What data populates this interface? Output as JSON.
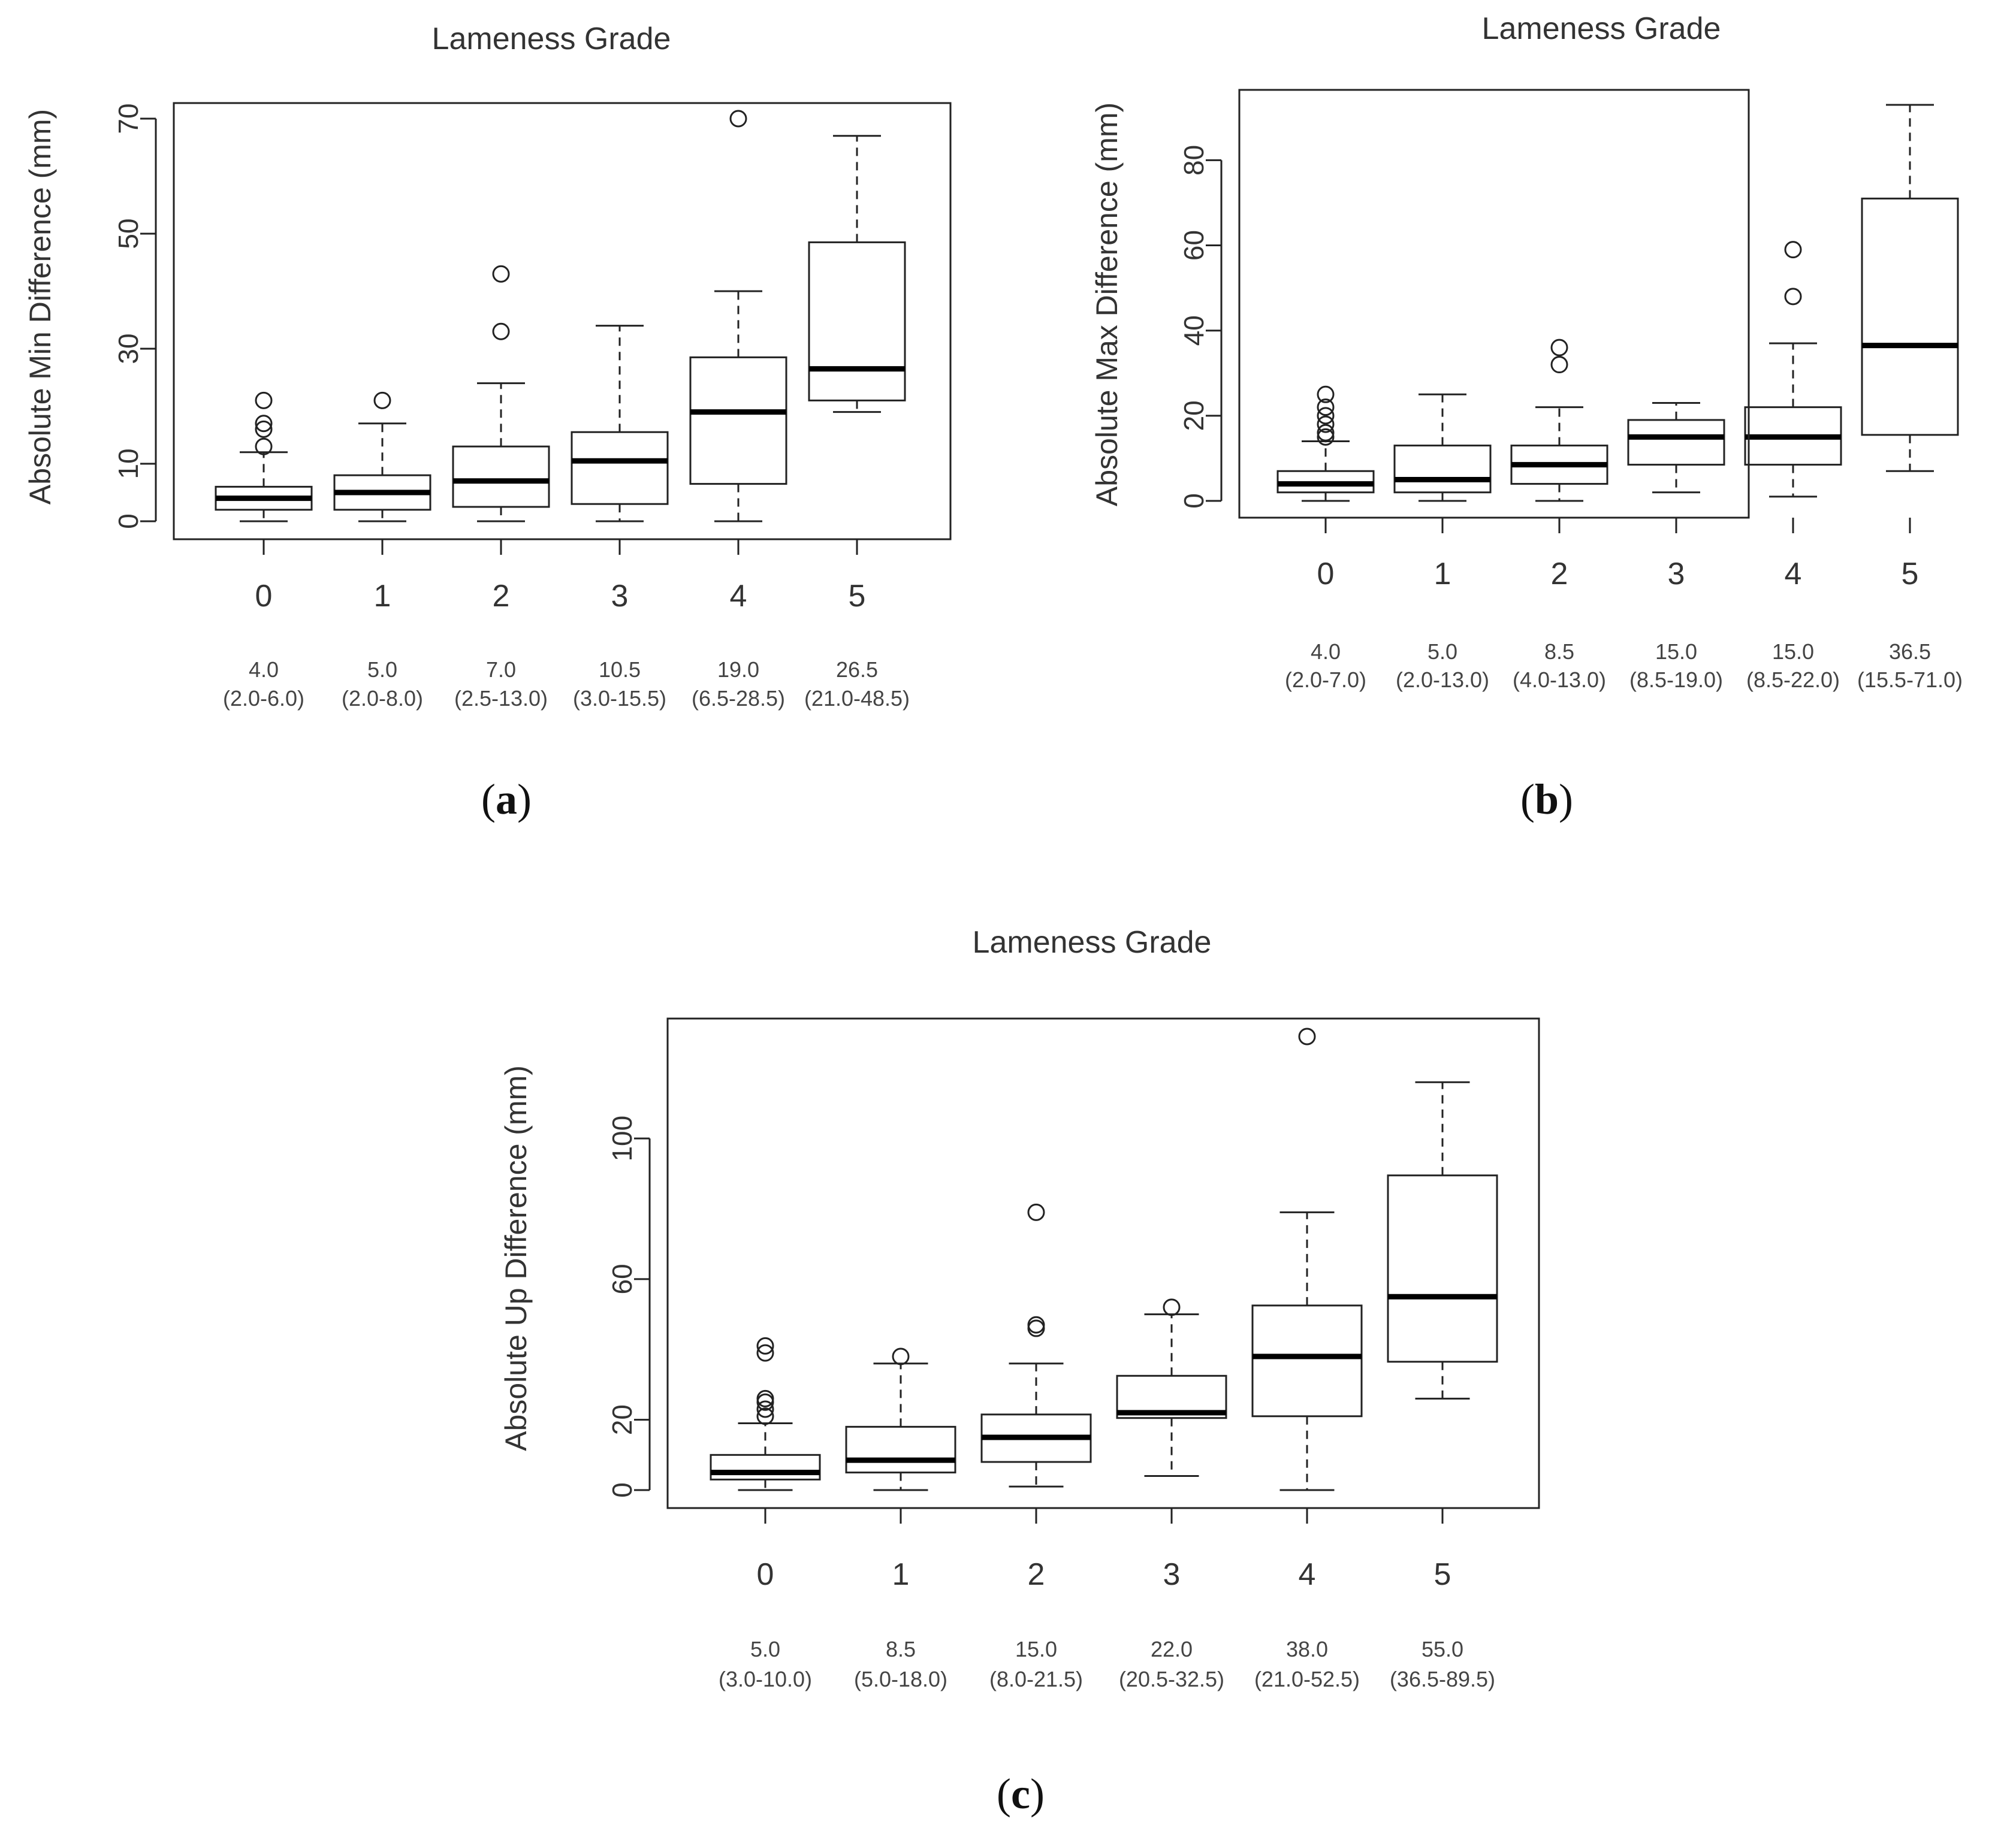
{
  "chart_data": [
    {
      "type": "boxplot",
      "panel_label": {
        "open": "(",
        "letter": "a",
        "close": ")"
      },
      "title": "Lameness Grade",
      "ylabel": "Absolute Min Difference (mm)",
      "ylim": [
        0,
        70
      ],
      "yticks": [
        0,
        10,
        30,
        50,
        70
      ],
      "categories": [
        "0",
        "1",
        "2",
        "3",
        "4",
        "5"
      ],
      "stats": [
        {
          "median": "4.0",
          "iqr": "(2.0-6.0)"
        },
        {
          "median": "5.0",
          "iqr": "(2.0-8.0)"
        },
        {
          "median": "7.0",
          "iqr": "(2.5-13.0)"
        },
        {
          "median": "10.5",
          "iqr": "(3.0-15.5)"
        },
        {
          "median": "19.0",
          "iqr": "(6.5-28.5)"
        },
        {
          "median": "26.5",
          "iqr": "(21.0-48.5)"
        }
      ],
      "boxes": [
        {
          "min": 0,
          "q1": 2.0,
          "median": 4.0,
          "q3": 6.0,
          "max": 12,
          "outliers": [
            13,
            16,
            17,
            21
          ]
        },
        {
          "min": 0,
          "q1": 2.0,
          "median": 5.0,
          "q3": 8.0,
          "max": 17,
          "outliers": [
            21
          ]
        },
        {
          "min": 0,
          "q1": 2.5,
          "median": 7.0,
          "q3": 13.0,
          "max": 24,
          "outliers": [
            33,
            43
          ]
        },
        {
          "min": 0,
          "q1": 3.0,
          "median": 10.5,
          "q3": 15.5,
          "max": 34,
          "outliers": []
        },
        {
          "min": 0,
          "q1": 6.5,
          "median": 19.0,
          "q3": 28.5,
          "max": 40,
          "outliers": [
            70
          ]
        },
        {
          "min": 19,
          "q1": 21.0,
          "median": 26.5,
          "q3": 48.5,
          "max": 67,
          "outliers": []
        }
      ]
    },
    {
      "type": "boxplot",
      "panel_label": {
        "open": "(",
        "letter": "b",
        "close": ")"
      },
      "title": "Lameness Grade",
      "ylabel": "Absolute Max Difference (mm)",
      "ylim": [
        0,
        93
      ],
      "yticks": [
        0,
        20,
        40,
        60,
        80
      ],
      "categories": [
        "0",
        "1",
        "2",
        "3",
        "4",
        "5"
      ],
      "stats": [
        {
          "median": "4.0",
          "iqr": "(2.0-7.0)"
        },
        {
          "median": "5.0",
          "iqr": "(2.0-13.0)"
        },
        {
          "median": "8.5",
          "iqr": "(4.0-13.0)"
        },
        {
          "median": "15.0",
          "iqr": "(8.5-19.0)"
        },
        {
          "median": "15.0",
          "iqr": "(8.5-22.0)"
        },
        {
          "median": "36.5",
          "iqr": "(15.5-71.0)"
        }
      ],
      "boxes": [
        {
          "min": 0,
          "q1": 2.0,
          "median": 4.0,
          "q3": 7.0,
          "max": 14,
          "outliers": [
            15,
            16,
            18,
            20,
            22,
            25
          ]
        },
        {
          "min": 0,
          "q1": 2.0,
          "median": 5.0,
          "q3": 13.0,
          "max": 25,
          "outliers": []
        },
        {
          "min": 0,
          "q1": 4.0,
          "median": 8.5,
          "q3": 13.0,
          "max": 22,
          "outliers": [
            32,
            36
          ]
        },
        {
          "min": 2,
          "q1": 8.5,
          "median": 15.0,
          "q3": 19.0,
          "max": 23,
          "outliers": []
        },
        {
          "min": 1,
          "q1": 8.5,
          "median": 15.0,
          "q3": 22.0,
          "max": 37,
          "outliers": [
            48,
            59
          ]
        },
        {
          "min": 7,
          "q1": 15.5,
          "median": 36.5,
          "q3": 71.0,
          "max": 93,
          "outliers": []
        }
      ]
    },
    {
      "type": "boxplot",
      "panel_label": {
        "open": "(",
        "letter": "c",
        "close": ")"
      },
      "title": "Lameness Grade",
      "ylabel": "Absolute Up Difference (mm)",
      "ylim": [
        0,
        129
      ],
      "yticks": [
        0,
        20,
        60,
        100
      ],
      "categories": [
        "0",
        "1",
        "2",
        "3",
        "4",
        "5"
      ],
      "stats": [
        {
          "median": "5.0",
          "iqr": "(3.0-10.0)"
        },
        {
          "median": "8.5",
          "iqr": "(5.0-18.0)"
        },
        {
          "median": "15.0",
          "iqr": "(8.0-21.5)"
        },
        {
          "median": "22.0",
          "iqr": "(20.5-32.5)"
        },
        {
          "median": "38.0",
          "iqr": "(21.0-52.5)"
        },
        {
          "median": "55.0",
          "iqr": "(36.5-89.5)"
        }
      ],
      "boxes": [
        {
          "min": 0,
          "q1": 3.0,
          "median": 5.0,
          "q3": 10.0,
          "max": 19,
          "outliers": [
            21,
            23,
            25,
            26,
            39,
            41
          ]
        },
        {
          "min": 0,
          "q1": 5.0,
          "median": 8.5,
          "q3": 18.0,
          "max": 36,
          "outliers": [
            38
          ]
        },
        {
          "min": 1,
          "q1": 8.0,
          "median": 15.0,
          "q3": 21.5,
          "max": 36,
          "outliers": [
            46,
            47,
            79
          ]
        },
        {
          "min": 4,
          "q1": 20.5,
          "median": 22.0,
          "q3": 32.5,
          "max": 50,
          "outliers": [
            52
          ]
        },
        {
          "min": 0,
          "q1": 21.0,
          "median": 38.0,
          "q3": 52.5,
          "max": 79,
          "outliers": [
            129
          ]
        },
        {
          "min": 26,
          "q1": 36.5,
          "median": 55.0,
          "q3": 89.5,
          "max": 116,
          "outliers": []
        }
      ]
    }
  ]
}
